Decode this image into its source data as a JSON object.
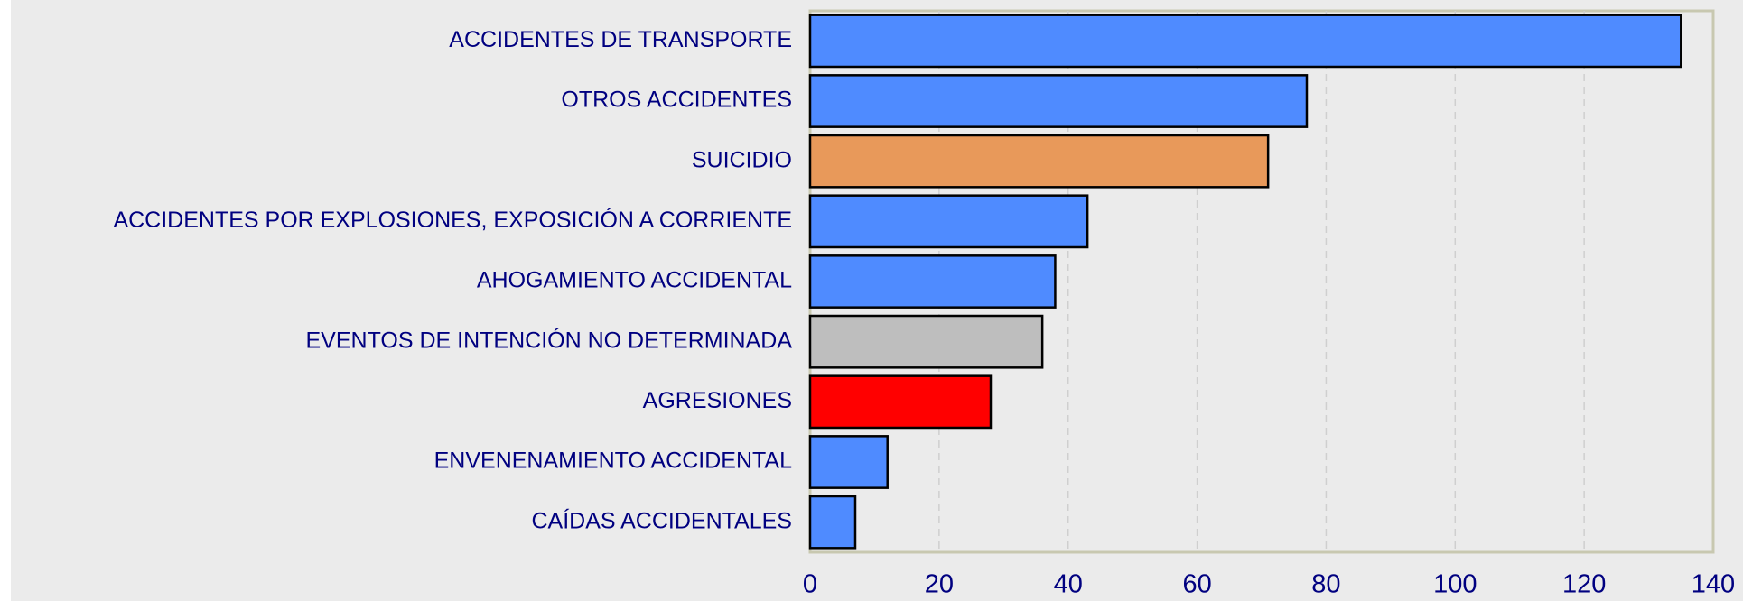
{
  "chart_data": {
    "type": "bar",
    "orientation": "horizontal",
    "categories": [
      "ACCIDENTES DE TRANSPORTE",
      "OTROS ACCIDENTES",
      "SUICIDIO",
      "ACCIDENTES POR EXPLOSIONES, EXPOSICIÓN A CORRIENTE",
      "AHOGAMIENTO ACCIDENTAL",
      "EVENTOS DE INTENCIÓN NO DETERMINADA",
      "AGRESIONES",
      "ENVENENAMIENTO ACCIDENTAL",
      "CAÍDAS ACCIDENTALES"
    ],
    "values": [
      135,
      77,
      71,
      43,
      38,
      36,
      28,
      12,
      7
    ],
    "colors": [
      "#4f8bff",
      "#4f8bff",
      "#e8995a",
      "#4f8bff",
      "#4f8bff",
      "#bebebe",
      "#ff0000",
      "#4f8bff",
      "#4f8bff"
    ],
    "xlim": [
      0,
      140
    ],
    "xticks": [
      0,
      20,
      40,
      60,
      80,
      100,
      120,
      140
    ],
    "grid": true
  }
}
